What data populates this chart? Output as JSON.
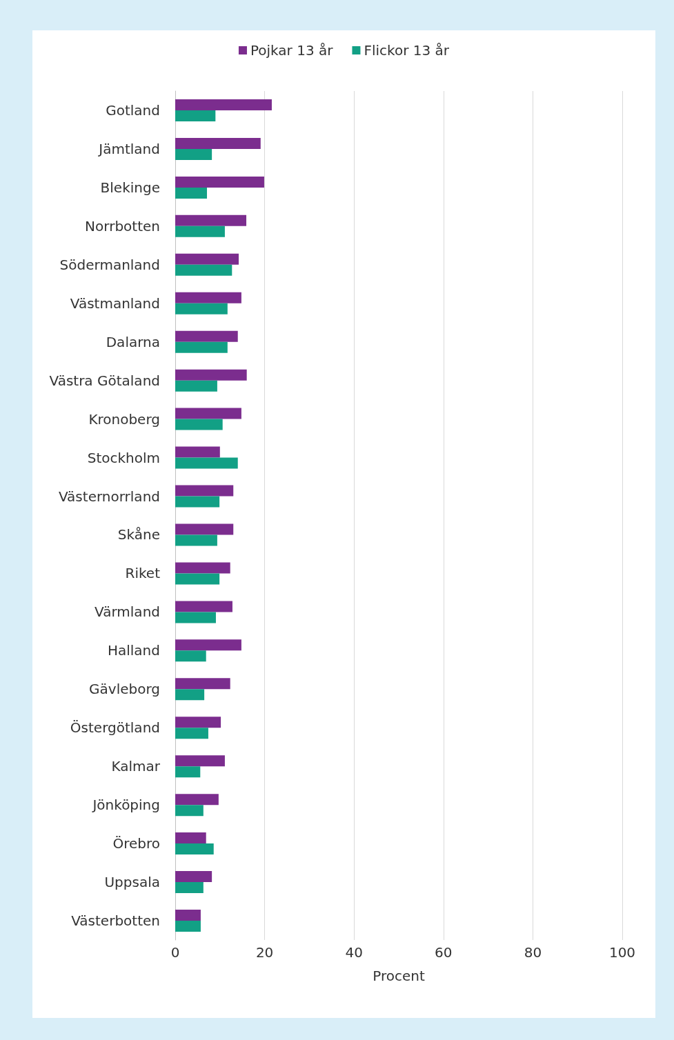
{
  "chart_data": {
    "type": "bar",
    "orientation": "horizontal",
    "xlabel": "Procent",
    "categories": [
      "Gotland",
      "Jämtland",
      "Blekinge",
      "Norrbotten",
      "Södermanland",
      "Västmanland",
      "Dalarna",
      "Västra Götaland",
      "Kronoberg",
      "Stockholm",
      "Västernorrland",
      "Skåne",
      "Riket",
      "Värmland",
      "Halland",
      "Gävleborg",
      "Östergötland",
      "Kalmar",
      "Jönköping",
      "Örebro",
      "Uppsala",
      "Västerbotten"
    ],
    "series": [
      {
        "name": "Pojkar 13 år",
        "color": "#7b2d8e",
        "values": [
          21.6,
          19.1,
          19.9,
          15.9,
          14.2,
          14.8,
          14.0,
          16.0,
          14.8,
          10.0,
          13.0,
          13.0,
          12.3,
          12.8,
          14.8,
          12.3,
          10.2,
          11.1,
          9.7,
          6.9,
          8.2,
          5.7
        ]
      },
      {
        "name": "Flickor 13 år",
        "color": "#12a085",
        "values": [
          9.0,
          8.2,
          7.1,
          11.1,
          12.7,
          11.7,
          11.7,
          9.4,
          10.6,
          14.0,
          9.9,
          9.4,
          9.9,
          9.1,
          6.9,
          6.5,
          7.4,
          5.6,
          6.3,
          8.6,
          6.3,
          5.7
        ]
      }
    ],
    "xlim": [
      0,
      100
    ],
    "xticks": [
      0,
      20,
      40,
      60,
      80,
      100
    ],
    "grid": "x",
    "legend": "top"
  }
}
